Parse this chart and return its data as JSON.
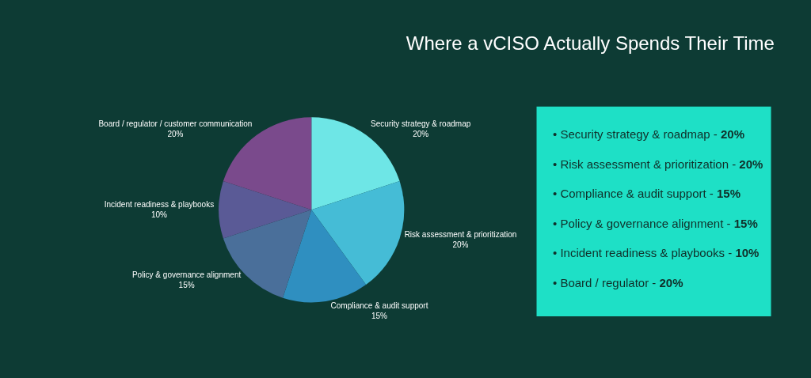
{
  "chart_data": {
    "type": "pie",
    "title": "Where a vCISO Actually Spends Their Time",
    "categories": [
      "Security strategy & roadmap",
      "Risk assessment & prioritization",
      "Compliance & audit support",
      "Policy & governance alignment",
      "Incident readiness & playbooks",
      "Board / regulator / customer communication"
    ],
    "values": [
      20,
      20,
      15,
      15,
      10,
      20
    ],
    "value_labels": [
      "20%",
      "20%",
      "15%",
      "15%",
      "10%",
      "20%"
    ],
    "colors": [
      "#6ee6e6",
      "#45bcd6",
      "#2f8fc0",
      "#4a6f9a",
      "#5a5a96",
      "#7a4a8c"
    ],
    "legend": false,
    "annotations": [
      "• Security strategy & roadmap - 20%",
      "• Risk assessment & prioritization - 20%",
      "• Compliance & audit support - 15%",
      "• Policy & governance alignment - 15%",
      "• Incident readiness & playbooks - 10%",
      "• Board / regulator - 20%"
    ]
  }
}
